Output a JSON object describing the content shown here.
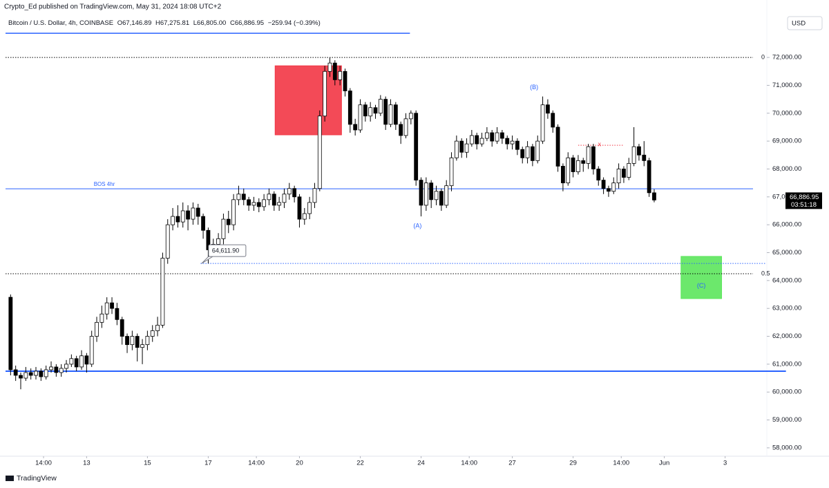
{
  "header": {
    "published": "Crypto_Ed published on TradingView.com, May 31, 2024 18:08 UTC+2",
    "logo": "TradingView"
  },
  "chart_data": {
    "type": "candlestick",
    "symbol": "Bitcoin / U.S. Dollar, 4h, COINBASE",
    "ohlc_text": [
      "O67,146.89",
      "H67,275.81",
      "L66,805.00",
      "C66,886.95"
    ],
    "change_text": "−259.94 (−0.39%)",
    "currency": "USD",
    "up_color": "#ffffff",
    "down_color": "#000000",
    "outline_color": "#000000",
    "open": [
      63400,
      60800,
      60600,
      60500,
      60700,
      60600,
      60750,
      60550,
      60800,
      60900,
      60700,
      60850,
      61000,
      61200,
      60900,
      61300,
      61000,
      62000,
      62500,
      62800,
      63200,
      63000,
      62600,
      62000,
      61700,
      62000,
      61600,
      61700,
      62000,
      62200,
      62400,
      64800,
      66000,
      66300,
      66100,
      66500,
      66200,
      66600,
      66300,
      65800,
      65100,
      65300,
      65500,
      66200,
      66000,
      66900,
      67100,
      66900,
      66700,
      66800,
      66650,
      66900,
      67100,
      66700,
      66800,
      67100,
      67300,
      67000,
      66200,
      66400,
      66800,
      67300,
      69900,
      71500,
      71800,
      71200,
      71500,
      70800,
      69600,
      69400,
      70300,
      69900,
      70200,
      70000,
      70500,
      69600,
      70300,
      69600,
      69200,
      69800,
      70000,
      67600,
      66700,
      67500,
      66900,
      67200,
      66700,
      67400,
      68400,
      69000,
      68600,
      68900,
      69200,
      68900,
      69100,
      69300,
      69000,
      69300,
      69100,
      68900,
      69000,
      68700,
      68400,
      68800,
      68300,
      69000,
      70300,
      70000,
      69500,
      68100,
      67500,
      68400,
      67900,
      68300,
      68200,
      68800,
      68000,
      67600,
      67300,
      67200,
      67500,
      68000,
      67700,
      68200,
      68800,
      68500,
      68300,
      67146.89
    ],
    "high": [
      63500,
      60950,
      60700,
      60900,
      60850,
      60900,
      60850,
      60950,
      61100,
      61000,
      61000,
      61150,
      61350,
      61300,
      61500,
      61400,
      62200,
      62700,
      63100,
      63400,
      63400,
      63200,
      62700,
      62100,
      62200,
      62100,
      61900,
      62200,
      62400,
      62700,
      65000,
      66200,
      66600,
      66700,
      66800,
      66700,
      66800,
      66750,
      66400,
      65900,
      65500,
      65700,
      66400,
      66500,
      67100,
      67400,
      67300,
      67000,
      67000,
      66950,
      67100,
      67300,
      67200,
      67000,
      67300,
      67500,
      67400,
      67100,
      66600,
      67000,
      67500,
      70100,
      71700,
      72000,
      71900,
      71700,
      71600,
      70900,
      69800,
      70500,
      70400,
      70400,
      70300,
      70650,
      70600,
      70500,
      70400,
      69700,
      70000,
      70100,
      70100,
      67700,
      67700,
      67600,
      67400,
      67300,
      67600,
      68600,
      69200,
      69100,
      69100,
      69400,
      69300,
      69300,
      69500,
      69400,
      69500,
      69400,
      69200,
      69200,
      69100,
      68800,
      69000,
      68900,
      69200,
      70600,
      70500,
      70100,
      69600,
      68200,
      68600,
      68500,
      68500,
      68400,
      68900,
      68900,
      68100,
      67700,
      67400,
      67700,
      68200,
      68100,
      68400,
      69500,
      68900,
      69000,
      68400,
      67275.81
    ],
    "low": [
      60600,
      60400,
      60100,
      60400,
      60450,
      60450,
      60400,
      60450,
      60700,
      60550,
      60550,
      60700,
      60900,
      60750,
      60800,
      60700,
      60900,
      61800,
      62300,
      62600,
      62800,
      62400,
      61700,
      61400,
      61500,
      61100,
      61000,
      61500,
      61800,
      62000,
      62300,
      64600,
      65800,
      65900,
      65900,
      65800,
      66000,
      66000,
      65500,
      64611.9,
      64900,
      65100,
      65300,
      65700,
      65800,
      66700,
      66700,
      66500,
      66500,
      66450,
      66500,
      66700,
      66500,
      66500,
      66600,
      66900,
      66800,
      65900,
      66000,
      66200,
      66600,
      67200,
      69700,
      71300,
      71000,
      71000,
      70600,
      69300,
      69200,
      69300,
      69700,
      69700,
      69800,
      69900,
      69400,
      69500,
      69400,
      68900,
      69100,
      69600,
      67400,
      66300,
      66500,
      66600,
      66700,
      66500,
      66600,
      67200,
      68300,
      68400,
      68400,
      68800,
      68700,
      68800,
      69000,
      68800,
      68900,
      68900,
      68700,
      68700,
      68500,
      68200,
      68200,
      68100,
      68200,
      68900,
      69800,
      69300,
      67900,
      67200,
      67400,
      67700,
      67800,
      67900,
      68000,
      67800,
      67400,
      67100,
      67000,
      67100,
      67300,
      67500,
      67600,
      68100,
      68300,
      68100,
      67000,
      66805
    ],
    "close": [
      60800,
      60600,
      60500,
      60700,
      60600,
      60750,
      60550,
      60800,
      60900,
      60700,
      60850,
      61000,
      61200,
      60900,
      61300,
      61000,
      62000,
      62500,
      62800,
      63200,
      63000,
      62600,
      62000,
      61700,
      62000,
      61600,
      61700,
      62000,
      62200,
      62400,
      64800,
      66000,
      66300,
      66100,
      66500,
      66200,
      66600,
      66300,
      65800,
      65100,
      65300,
      65500,
      66200,
      66000,
      66900,
      67100,
      66900,
      66700,
      66800,
      66650,
      66900,
      67100,
      66700,
      66800,
      67100,
      67300,
      67000,
      66200,
      66400,
      66800,
      67300,
      69900,
      71500,
      71800,
      71200,
      71500,
      70800,
      69600,
      69400,
      70300,
      69900,
      70200,
      70000,
      70500,
      69600,
      70300,
      69600,
      69200,
      69800,
      70000,
      67600,
      66700,
      67500,
      66900,
      67200,
      66700,
      67400,
      68400,
      69000,
      68600,
      68900,
      69200,
      68900,
      69100,
      69300,
      69000,
      69300,
      69100,
      68900,
      69000,
      68700,
      68400,
      68800,
      68300,
      69000,
      70300,
      70000,
      69500,
      68100,
      67500,
      68400,
      67900,
      68300,
      68200,
      68800,
      68000,
      67600,
      67300,
      67200,
      67500,
      68000,
      67700,
      68200,
      68800,
      68500,
      68300,
      67146.89,
      66886.95
    ],
    "last_price_label": "66,886.95",
    "countdown": "03:51:18",
    "xlim": [
      -1,
      146.5
    ],
    "xticks": [
      {
        "value": 6.5,
        "label": "14:00"
      },
      {
        "value": 15,
        "label": "13"
      },
      {
        "value": 27,
        "label": "15"
      },
      {
        "value": 39,
        "label": "17"
      },
      {
        "value": 48.5,
        "label": "14:00"
      },
      {
        "value": 57,
        "label": "20"
      },
      {
        "value": 69,
        "label": "22"
      },
      {
        "value": 81,
        "label": "24"
      },
      {
        "value": 90.5,
        "label": "14:00"
      },
      {
        "value": 99,
        "label": "27"
      },
      {
        "value": 111,
        "label": "29"
      },
      {
        "value": 120.5,
        "label": "14:00"
      },
      {
        "value": 129,
        "label": "Jun"
      },
      {
        "value": 141,
        "label": "3"
      }
    ],
    "ylim": [
      57700,
      74060
    ],
    "yticks": [
      {
        "value": 58000,
        "label": "58,000.00"
      },
      {
        "value": 59000,
        "label": "59,000.00"
      },
      {
        "value": 60000,
        "label": "60,000.00"
      },
      {
        "value": 61000,
        "label": "61,000.00"
      },
      {
        "value": 62000,
        "label": "62,000.00"
      },
      {
        "value": 63000,
        "label": "63,000.00"
      },
      {
        "value": 64000,
        "label": "64,000.00"
      },
      {
        "value": 65000,
        "label": "65,000.00"
      },
      {
        "value": 66000,
        "label": "66,000.00"
      },
      {
        "value": 67000,
        "label": "67,000.00"
      },
      {
        "value": 68000,
        "label": "68,000.00"
      },
      {
        "value": 69000,
        "label": "69,000.00"
      },
      {
        "value": 70000,
        "label": "70,000.00"
      },
      {
        "value": 71000,
        "label": "71,000.00"
      },
      {
        "value": 72000,
        "label": "72,000.00"
      }
    ],
    "hlines": [
      {
        "value": 72867,
        "x": [
          -1,
          78.8
        ],
        "color": "#2962ff",
        "width": 1.5
      },
      {
        "value": 67290,
        "x": [
          -1,
          146.5
        ],
        "color": "#2962ff",
        "width": 1,
        "label": "BOS 4hr",
        "label_x": 18.5
      },
      {
        "value": 60750,
        "x": [
          -1,
          153
        ],
        "color": "#2962ff",
        "width": 2
      },
      {
        "value": 72000,
        "x": [
          -1,
          146.5
        ],
        "color": "#000000",
        "width": 1,
        "dotted": true,
        "label": "0"
      },
      {
        "value": 64245,
        "x": [
          -1,
          146.5
        ],
        "color": "#000000",
        "width": 1,
        "dotted": true,
        "label": "0.5"
      },
      {
        "value": 64611.9,
        "x": [
          37.5,
          149
        ],
        "color": "#2962ff",
        "width": 1,
        "dotted": true
      },
      {
        "value": 68850,
        "x": [
          112,
          121
        ],
        "color": "#f23645",
        "width": 1,
        "dotted": true
      }
    ],
    "boxes": [
      {
        "x": [
          52.2,
          65.3
        ],
        "y": [
          69225,
          71700
        ],
        "color": "#f23645"
      },
      {
        "x": [
          132.3,
          140.3
        ],
        "y": [
          63353,
          64865
        ],
        "color": "#5ce65c",
        "label": "(C)"
      }
    ],
    "annotations": [
      {
        "text": "(A)",
        "x": 80.3,
        "y": 65950,
        "color": "#2962ff"
      },
      {
        "text": "(B)",
        "x": 103.3,
        "y": 70920,
        "color": "#2962ff"
      },
      {
        "text": "x",
        "x": 116.2,
        "y": 68880,
        "color": "#f23645"
      }
    ],
    "callout": {
      "text": "64,611.90",
      "x": 37.7,
      "y": 64611.9
    }
  }
}
